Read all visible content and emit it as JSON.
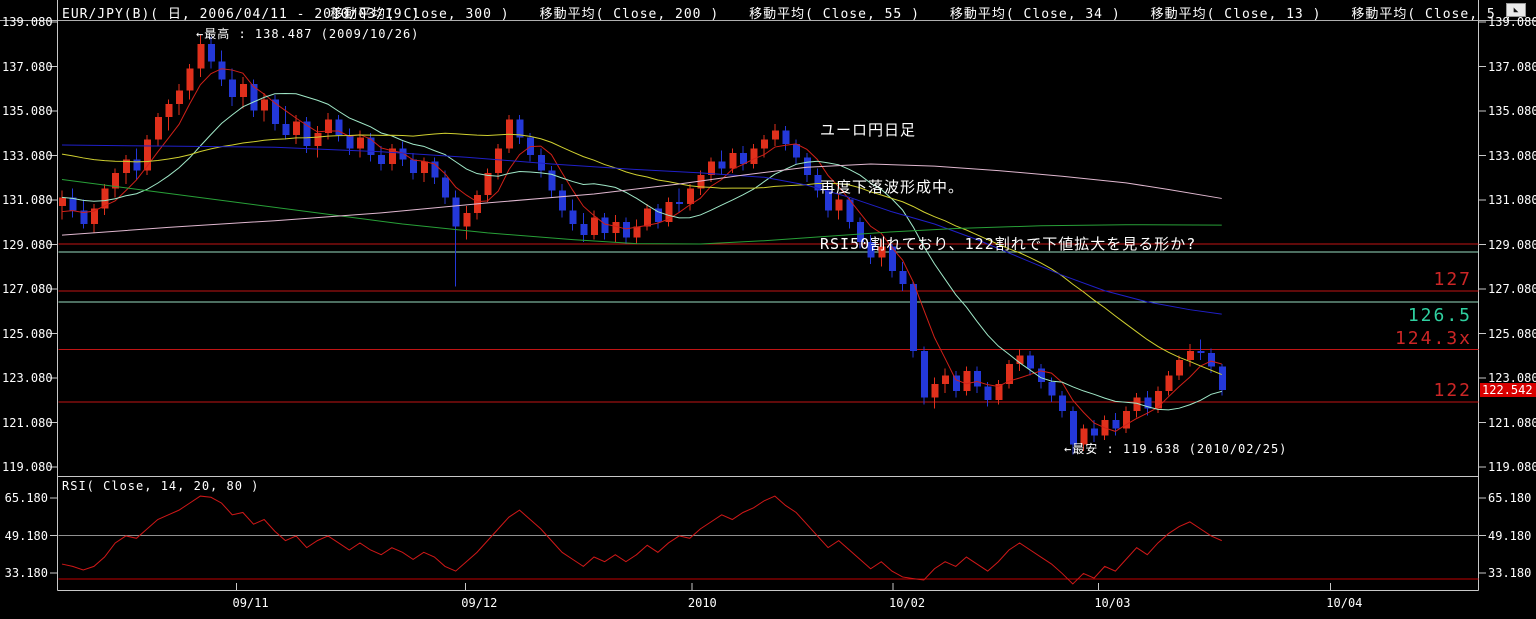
{
  "header": {
    "title": "EUR/JPY(B)( 日, 2006/04/11 - 2010/03/19 )",
    "legend": [
      {
        "label": "移動平均( Close, 300 )"
      },
      {
        "label": "移動平均( Close, 200 )"
      },
      {
        "label": "移動平均( Close, 55 )"
      },
      {
        "label": "移動平均( Close, 34 )"
      },
      {
        "label": "移動平均( Close, 13 )"
      },
      {
        "label": "移動平均( Close, 5 )"
      }
    ],
    "corner_icon": "scroll-to-end-arrow"
  },
  "colors": {
    "background": "#000000",
    "text": "#ffffff",
    "axis": "#c8c8c8",
    "candle_up": "#e0301c",
    "candle_down": "#2438d8",
    "sr_red": "#c01414",
    "sr_mint": "#98dcc0",
    "label_red": "#cc2626",
    "label_teal": "#2fd0a0",
    "current_price_bg": "#d80000",
    "rsi_line": "#d01818",
    "rsi_mid_line": "#909090",
    "rsi_low_line": "#c00000"
  },
  "annotations": {
    "high": "←最高 : 138.487 (2009/10/26)",
    "low": "←最安 : 119.638 (2010/02/25)",
    "comment_lines": [
      "ユーロ円日足",
      "再度下落波形成中。",
      "RSI50割れており、122割れで下値拡大を見る形か?"
    ]
  },
  "current_price": {
    "value": "122.542"
  },
  "chart_data": {
    "type": "candlestick",
    "title": "EUR/JPY(B) daily with moving averages and RSI",
    "price_axis": {
      "tick_values": [
        139.08,
        137.08,
        135.08,
        133.08,
        131.08,
        129.08,
        127.08,
        125.08,
        123.08,
        121.08,
        119.08
      ],
      "tick_labels": [
        "139.080",
        "137.080",
        "135.080",
        "133.080",
        "131.080",
        "129.080",
        "127.080",
        "125.080",
        "123.080",
        "121.080",
        "119.080"
      ]
    },
    "time_axis": {
      "ticks": [
        {
          "label": "09/11",
          "i": 16.4
        },
        {
          "label": "09/12",
          "i": 37.9
        },
        {
          "label": "2010",
          "i": 59.2
        },
        {
          "label": "10/02",
          "i": 78.1
        },
        {
          "label": "10/03",
          "i": 97.4
        },
        {
          "label": "10/04",
          "i": 119.2
        }
      ]
    },
    "high_point": {
      "value": 138.487,
      "date": "2009/10/26"
    },
    "low_point": {
      "value": 119.638,
      "date": "2010/02/25"
    },
    "last_close": 122.542,
    "candles_ohlc": [
      [
        130.8,
        131.5,
        130.2,
        131.2
      ],
      [
        131.2,
        131.6,
        130.3,
        130.6
      ],
      [
        130.6,
        131.1,
        129.8,
        130.0
      ],
      [
        130.0,
        130.9,
        129.6,
        130.7
      ],
      [
        130.7,
        131.8,
        130.4,
        131.6
      ],
      [
        131.6,
        132.5,
        131.2,
        132.3
      ],
      [
        132.3,
        133.1,
        131.8,
        132.9
      ],
      [
        132.9,
        133.4,
        132.0,
        132.4
      ],
      [
        132.4,
        134.0,
        132.2,
        133.8
      ],
      [
        133.8,
        135.0,
        133.5,
        134.8
      ],
      [
        134.8,
        135.6,
        134.2,
        135.4
      ],
      [
        135.4,
        136.3,
        134.9,
        136.0
      ],
      [
        136.0,
        137.2,
        135.6,
        137.0
      ],
      [
        137.0,
        138.487,
        136.6,
        138.1
      ],
      [
        138.1,
        138.4,
        137.0,
        137.3
      ],
      [
        137.3,
        137.8,
        136.2,
        136.5
      ],
      [
        136.5,
        137.0,
        135.3,
        135.7
      ],
      [
        135.7,
        136.6,
        135.2,
        136.3
      ],
      [
        136.3,
        136.5,
        134.8,
        135.1
      ],
      [
        135.1,
        135.9,
        134.6,
        135.6
      ],
      [
        135.6,
        135.8,
        134.2,
        134.5
      ],
      [
        134.5,
        135.3,
        133.8,
        134.0
      ],
      [
        134.0,
        134.9,
        133.6,
        134.6
      ],
      [
        134.6,
        134.8,
        133.2,
        133.5
      ],
      [
        133.5,
        134.4,
        133.0,
        134.1
      ],
      [
        134.1,
        135.0,
        133.8,
        134.7
      ],
      [
        134.7,
        134.9,
        133.7,
        134.0
      ],
      [
        134.0,
        134.3,
        133.1,
        133.4
      ],
      [
        133.4,
        134.2,
        133.0,
        133.9
      ],
      [
        133.9,
        134.1,
        132.8,
        133.1
      ],
      [
        133.1,
        133.5,
        132.4,
        132.7
      ],
      [
        132.7,
        133.6,
        132.4,
        133.4
      ],
      [
        133.4,
        133.7,
        132.6,
        132.9
      ],
      [
        132.9,
        133.2,
        132.0,
        132.3
      ],
      [
        132.3,
        133.0,
        131.9,
        132.8
      ],
      [
        132.8,
        133.0,
        131.8,
        132.1
      ],
      [
        132.1,
        132.4,
        130.9,
        131.2
      ],
      [
        131.2,
        131.5,
        127.2,
        129.9
      ],
      [
        129.9,
        130.8,
        129.3,
        130.5
      ],
      [
        130.5,
        131.5,
        130.2,
        131.3
      ],
      [
        131.3,
        132.5,
        131.0,
        132.3
      ],
      [
        132.3,
        133.6,
        132.0,
        133.4
      ],
      [
        133.4,
        134.9,
        133.2,
        134.7
      ],
      [
        134.7,
        134.9,
        133.6,
        133.9
      ],
      [
        133.9,
        134.1,
        132.8,
        133.1
      ],
      [
        133.1,
        133.4,
        132.1,
        132.4
      ],
      [
        132.4,
        132.6,
        131.2,
        131.5
      ],
      [
        131.5,
        131.8,
        130.3,
        130.6
      ],
      [
        130.6,
        131.1,
        129.7,
        130.0
      ],
      [
        130.0,
        130.5,
        129.2,
        129.5
      ],
      [
        129.5,
        130.6,
        129.3,
        130.3
      ],
      [
        130.3,
        130.5,
        129.3,
        129.6
      ],
      [
        129.6,
        130.4,
        129.2,
        130.1
      ],
      [
        130.1,
        130.3,
        129.1,
        129.4
      ],
      [
        129.4,
        130.2,
        129.1,
        129.9
      ],
      [
        129.9,
        130.9,
        129.7,
        130.7
      ],
      [
        130.7,
        130.9,
        129.8,
        130.1
      ],
      [
        130.1,
        131.2,
        129.9,
        131.0
      ],
      [
        131.0,
        131.6,
        130.5,
        130.9
      ],
      [
        130.9,
        131.8,
        130.6,
        131.6
      ],
      [
        131.6,
        132.4,
        131.3,
        132.2
      ],
      [
        132.2,
        133.0,
        131.9,
        132.8
      ],
      [
        132.8,
        133.3,
        132.2,
        132.5
      ],
      [
        132.5,
        133.4,
        132.3,
        133.2
      ],
      [
        133.2,
        133.5,
        132.4,
        132.7
      ],
      [
        132.7,
        133.6,
        132.5,
        133.4
      ],
      [
        133.4,
        134.0,
        133.0,
        133.8
      ],
      [
        133.8,
        134.5,
        133.5,
        134.2
      ],
      [
        134.2,
        134.4,
        133.3,
        133.6
      ],
      [
        133.6,
        133.8,
        132.7,
        133.0
      ],
      [
        133.0,
        133.2,
        131.9,
        132.2
      ],
      [
        132.2,
        132.5,
        131.2,
        131.5
      ],
      [
        131.5,
        131.7,
        130.3,
        130.6
      ],
      [
        130.6,
        131.4,
        130.2,
        131.1
      ],
      [
        131.1,
        131.2,
        129.8,
        130.1
      ],
      [
        130.1,
        130.3,
        128.9,
        129.2
      ],
      [
        129.2,
        129.5,
        128.2,
        128.5
      ],
      [
        128.5,
        129.3,
        128.1,
        129.0
      ],
      [
        129.0,
        129.1,
        127.6,
        127.9
      ],
      [
        127.9,
        128.3,
        127.0,
        127.3
      ],
      [
        127.3,
        127.4,
        124.0,
        124.3
      ],
      [
        124.3,
        124.5,
        121.9,
        122.2
      ],
      [
        122.2,
        123.1,
        121.7,
        122.8
      ],
      [
        122.8,
        123.5,
        122.4,
        123.2
      ],
      [
        123.2,
        123.4,
        122.2,
        122.5
      ],
      [
        122.5,
        123.6,
        122.3,
        123.4
      ],
      [
        123.4,
        123.6,
        122.4,
        122.7
      ],
      [
        122.7,
        122.9,
        121.8,
        122.1
      ],
      [
        122.1,
        123.0,
        121.9,
        122.8
      ],
      [
        122.8,
        123.9,
        122.6,
        123.7
      ],
      [
        123.7,
        124.35,
        123.4,
        124.1
      ],
      [
        124.1,
        124.3,
        123.2,
        123.5
      ],
      [
        123.5,
        123.7,
        122.6,
        122.9
      ],
      [
        122.9,
        123.1,
        122.0,
        122.3
      ],
      [
        122.3,
        122.5,
        121.3,
        121.6
      ],
      [
        121.6,
        121.8,
        119.638,
        120.1
      ],
      [
        120.1,
        121.0,
        119.8,
        120.8
      ],
      [
        120.8,
        121.2,
        120.2,
        120.5
      ],
      [
        120.5,
        121.4,
        120.3,
        121.2
      ],
      [
        121.2,
        121.5,
        120.5,
        120.8
      ],
      [
        120.8,
        121.8,
        120.6,
        121.6
      ],
      [
        121.6,
        122.4,
        121.3,
        122.2
      ],
      [
        122.2,
        122.5,
        121.4,
        121.7
      ],
      [
        121.7,
        122.7,
        121.5,
        122.5
      ],
      [
        122.5,
        123.4,
        122.3,
        123.2
      ],
      [
        123.2,
        124.1,
        123.0,
        123.9
      ],
      [
        123.9,
        124.6,
        123.6,
        124.3
      ],
      [
        124.3,
        124.8,
        123.9,
        124.2
      ],
      [
        124.2,
        124.4,
        123.3,
        123.6
      ],
      [
        123.6,
        123.7,
        122.3,
        122.542
      ]
    ],
    "ma_computed": [
      {
        "name": "MA5",
        "window": 5,
        "seed": 130.4,
        "color": "#d02018"
      },
      {
        "name": "MA13",
        "window": 13,
        "seed": 131.2,
        "color": "#a0e8c8"
      },
      {
        "name": "MA34",
        "window": 34,
        "seed": 133.2,
        "color": "#d0d030"
      }
    ],
    "ma_lines": [
      {
        "name": "MA55",
        "color": "#2020c8",
        "points": [
          [
            0,
            133.55
          ],
          [
            10,
            133.5
          ],
          [
            20,
            133.45
          ],
          [
            30,
            133.25
          ],
          [
            38,
            133.0
          ],
          [
            46,
            132.7
          ],
          [
            54,
            132.45
          ],
          [
            60,
            132.3
          ],
          [
            66,
            132.1
          ],
          [
            70,
            131.75
          ],
          [
            74,
            131.2
          ],
          [
            78,
            130.55
          ],
          [
            82,
            130.0
          ],
          [
            86,
            129.3
          ],
          [
            90,
            128.5
          ],
          [
            94,
            127.7
          ],
          [
            98,
            127.0
          ],
          [
            102,
            126.5
          ],
          [
            106,
            126.15
          ],
          [
            109,
            125.95
          ]
        ]
      },
      {
        "name": "MA200",
        "color": "#28a038",
        "points": [
          [
            0,
            132.0
          ],
          [
            8,
            131.5
          ],
          [
            16,
            131.0
          ],
          [
            24,
            130.5
          ],
          [
            32,
            130.0
          ],
          [
            40,
            129.6
          ],
          [
            48,
            129.3
          ],
          [
            54,
            129.12
          ],
          [
            60,
            129.1
          ],
          [
            66,
            129.25
          ],
          [
            72,
            129.45
          ],
          [
            78,
            129.65
          ],
          [
            84,
            129.8
          ],
          [
            92,
            129.92
          ],
          [
            100,
            129.97
          ],
          [
            109,
            129.95
          ]
        ]
      },
      {
        "name": "MA300",
        "color": "#e0b8d0",
        "points": [
          [
            0,
            129.5
          ],
          [
            10,
            129.85
          ],
          [
            20,
            130.15
          ],
          [
            30,
            130.5
          ],
          [
            40,
            130.95
          ],
          [
            50,
            131.35
          ],
          [
            58,
            131.8
          ],
          [
            64,
            132.2
          ],
          [
            70,
            132.55
          ],
          [
            76,
            132.7
          ],
          [
            82,
            132.6
          ],
          [
            88,
            132.4
          ],
          [
            94,
            132.15
          ],
          [
            100,
            131.85
          ],
          [
            104,
            131.55
          ],
          [
            109,
            131.15
          ]
        ]
      }
    ],
    "horizontal_lines": [
      {
        "price": 129.1,
        "color": "#c01414"
      },
      {
        "price": 128.75,
        "color": "#98dcc0"
      },
      {
        "price": 127.0,
        "color": "#c01414",
        "label": "127",
        "label_color": "#cc2626",
        "label_side": "above"
      },
      {
        "price": 126.5,
        "color": "#98dcc0",
        "label": "126.5",
        "label_color": "#2fd0a0",
        "label_side": "below"
      },
      {
        "price": 124.35,
        "color": "#c01414",
        "label": "124.3x",
        "label_color": "#cc2626",
        "label_side": "above"
      },
      {
        "price": 122.0,
        "color": "#c01414",
        "label": "122",
        "label_color": "#cc2626",
        "label_side": "above"
      }
    ],
    "rsi": {
      "label": "RSI( Close, 14, 20, 80 )",
      "axis_tick_values": [
        65.18,
        49.18,
        33.18
      ],
      "axis_tick_labels": [
        "65.180",
        "49.180",
        "33.180"
      ],
      "mid_level": 49.18,
      "low_level": 30.7,
      "values": [
        37,
        36,
        34.5,
        36,
        40,
        46,
        49,
        48,
        52,
        56,
        58,
        60,
        63,
        66,
        65.5,
        63,
        58,
        59,
        54,
        56,
        51,
        47,
        49,
        44,
        47,
        49,
        46,
        43,
        46,
        43,
        41,
        44,
        42,
        39,
        42,
        40,
        36,
        34,
        38,
        42,
        47,
        52,
        57,
        60,
        56,
        52,
        47,
        42,
        39,
        36,
        40,
        38,
        41,
        38,
        41,
        45,
        42,
        46,
        49,
        48,
        52,
        55,
        58,
        56,
        59,
        61,
        64,
        66,
        62,
        59,
        54,
        49,
        44,
        47,
        43,
        39,
        35,
        38,
        34,
        31.5,
        30.8,
        30.2,
        35,
        38,
        36,
        40,
        37,
        34,
        38,
        43,
        46,
        43,
        40,
        37,
        33,
        28.5,
        33,
        31,
        36,
        34,
        39,
        44,
        41,
        46,
        50,
        53,
        55,
        52,
        49,
        47
      ]
    }
  }
}
